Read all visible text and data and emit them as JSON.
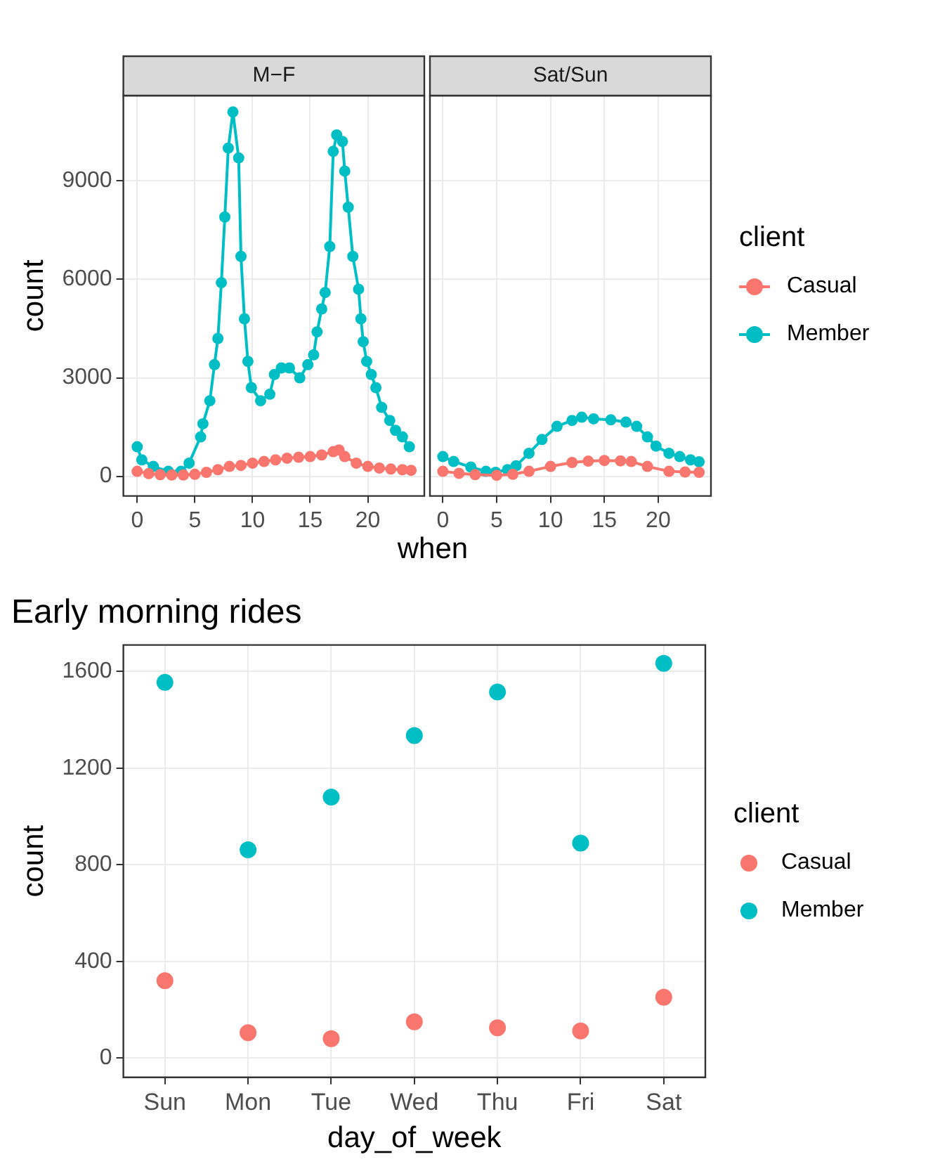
{
  "chart_data": [
    {
      "type": "line",
      "title": "M−F",
      "xlabel": "when",
      "ylabel": "count",
      "xlim": [
        -1.2,
        24.9
      ],
      "xticks": [
        0,
        5,
        10,
        15,
        20
      ],
      "ylim": [
        -600,
        11600
      ],
      "yticks": [
        0,
        3000,
        6000,
        9000
      ],
      "grid": true,
      "marker": "circle",
      "series": [
        {
          "color": "#f8766d",
          "x": [
            0,
            1,
            2,
            3,
            4,
            5,
            6,
            7,
            8,
            9,
            10,
            11,
            12,
            13,
            14,
            15,
            16,
            17,
            17.5,
            18,
            19,
            20,
            21,
            22,
            23,
            23.75
          ],
          "values": [
            150,
            80,
            50,
            40,
            40,
            60,
            120,
            200,
            300,
            330,
            400,
            450,
            500,
            550,
            580,
            600,
            650,
            750,
            800,
            600,
            400,
            300,
            250,
            220,
            200,
            180
          ]
        },
        {
          "color": "#00bfc4",
          "x": [
            0,
            0.4,
            1.4,
            2.7,
            3.8,
            4.5,
            5.5,
            5.7,
            6.3,
            6.7,
            7,
            7.3,
            7.6,
            7.9,
            8.3,
            8.8,
            9,
            9.3,
            9.6,
            9.9,
            10.7,
            11.5,
            11.9,
            12.5,
            13.2,
            14.1,
            14.8,
            15.3,
            15.6,
            16,
            16.3,
            16.7,
            17,
            17.3,
            17.8,
            18,
            18.3,
            18.7,
            19.2,
            19.4,
            19.6,
            19.9,
            20.3,
            20.7,
            21.2,
            21.9,
            22.4,
            23,
            23.6
          ],
          "values": [
            900,
            500,
            300,
            150,
            150,
            400,
            1200,
            1600,
            2300,
            3400,
            4200,
            5900,
            7900,
            10000,
            11100,
            9700,
            6700,
            4800,
            3500,
            2700,
            2300,
            2500,
            3100,
            3300,
            3300,
            3000,
            3400,
            3700,
            4400,
            5100,
            5600,
            7000,
            9900,
            10400,
            10200,
            9300,
            8200,
            6700,
            5700,
            4800,
            4100,
            3500,
            3100,
            2700,
            2100,
            1700,
            1400,
            1200,
            900
          ]
        }
      ]
    },
    {
      "type": "line",
      "title": "Sat/Sun",
      "legend_title": "client",
      "legend": "right",
      "xlim": [
        -1.2,
        24.9
      ],
      "xticks": [
        0,
        5,
        10,
        15,
        20
      ],
      "ylim": [
        -600,
        11600
      ],
      "yticks": [
        0,
        3000,
        6000,
        9000
      ],
      "tick_labels": "x",
      "grid": true,
      "marker": "circle",
      "series": [
        {
          "name": "Casual",
          "color": "#f8766d",
          "x": [
            0,
            1.5,
            3,
            5,
            6.5,
            8,
            10,
            12,
            13.5,
            15,
            16.5,
            17.5,
            19,
            21,
            22.5,
            23.8
          ],
          "values": [
            150,
            90,
            50,
            30,
            60,
            150,
            300,
            420,
            460,
            480,
            470,
            450,
            300,
            150,
            130,
            120
          ]
        },
        {
          "name": "Member",
          "color": "#00bfc4",
          "x": [
            0,
            1,
            2.6,
            4,
            4.9,
            6,
            6.8,
            8,
            9.2,
            10.6,
            12,
            12.9,
            14,
            15.6,
            17,
            18,
            19,
            19.8,
            21,
            22,
            23,
            23.8
          ],
          "values": [
            600,
            450,
            280,
            150,
            120,
            200,
            320,
            700,
            1120,
            1520,
            1700,
            1800,
            1750,
            1720,
            1650,
            1520,
            1200,
            920,
            700,
            600,
            500,
            440
          ]
        }
      ]
    },
    {
      "type": "scatter",
      "title": "Early morning rides",
      "xlabel": "day_of_week",
      "ylabel": "count",
      "legend_title": "client",
      "legend": "right",
      "categories": [
        "Sun",
        "Mon",
        "Tue",
        "Wed",
        "Thu",
        "Fri",
        "Sat"
      ],
      "ylim": [
        -80,
        1710
      ],
      "yticks": [
        0,
        400,
        800,
        1200,
        1600
      ],
      "grid": true,
      "marker": "circle",
      "series": [
        {
          "name": "Casual",
          "color": "#f8766d",
          "values": [
            320,
            105,
            80,
            150,
            125,
            112,
            252
          ]
        },
        {
          "name": "Member",
          "color": "#00bfc4",
          "values": [
            1555,
            862,
            1080,
            1335,
            1515,
            890,
            1634
          ]
        }
      ]
    }
  ]
}
